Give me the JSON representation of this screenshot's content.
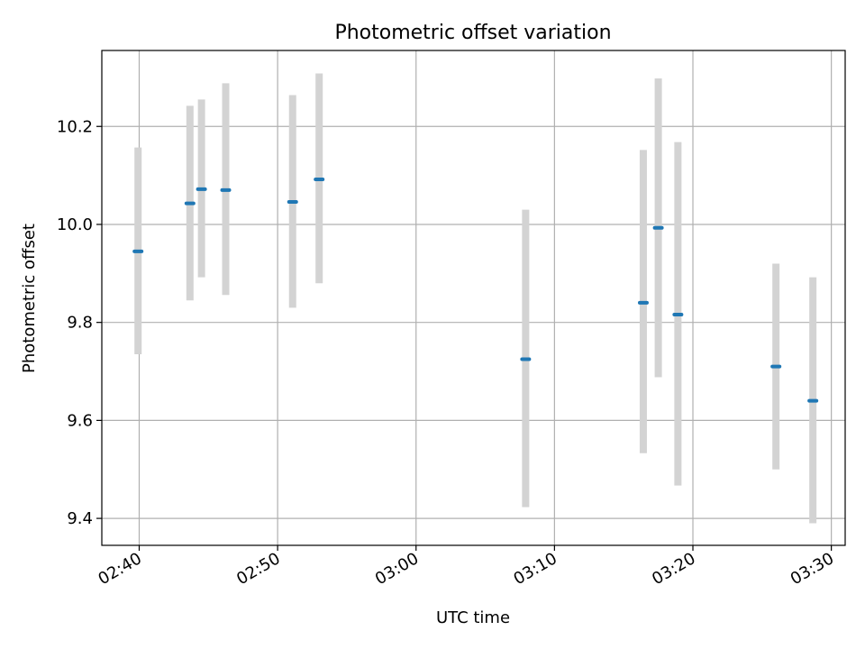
{
  "chart_data": {
    "type": "errorbar",
    "title": "Photometric offset variation",
    "xlabel": "UTC time",
    "ylabel": "Photometric offset",
    "xlim": [
      "02:37:18",
      "03:31:00"
    ],
    "ylim": [
      9.345,
      10.355
    ],
    "grid": true,
    "x_ticks": [
      "02:40",
      "02:50",
      "03:00",
      "03:10",
      "03:20",
      "03:30"
    ],
    "y_ticks": [
      "9.4",
      "9.6",
      "9.8",
      "10.0",
      "10.2"
    ],
    "marker_color": "#1f77b4",
    "errorbar_color": "#d3d3d3",
    "points": [
      {
        "time": "02:39:55",
        "y": 9.945,
        "ylow": 9.735,
        "yhigh": 10.157
      },
      {
        "time": "02:43:40",
        "y": 10.043,
        "ylow": 9.845,
        "yhigh": 10.242
      },
      {
        "time": "02:44:30",
        "y": 10.072,
        "ylow": 9.892,
        "yhigh": 10.255
      },
      {
        "time": "02:46:15",
        "y": 10.07,
        "ylow": 9.856,
        "yhigh": 10.288
      },
      {
        "time": "02:51:05",
        "y": 10.046,
        "ylow": 9.83,
        "yhigh": 10.264
      },
      {
        "time": "02:53:00",
        "y": 10.092,
        "ylow": 9.88,
        "yhigh": 10.308
      },
      {
        "time": "03:07:55",
        "y": 9.725,
        "ylow": 9.423,
        "yhigh": 10.03
      },
      {
        "time": "03:16:25",
        "y": 9.84,
        "ylow": 9.533,
        "yhigh": 10.152
      },
      {
        "time": "03:17:30",
        "y": 9.993,
        "ylow": 9.688,
        "yhigh": 10.298
      },
      {
        "time": "03:18:55",
        "y": 9.816,
        "ylow": 9.467,
        "yhigh": 10.168
      },
      {
        "time": "03:26:00",
        "y": 9.71,
        "ylow": 9.5,
        "yhigh": 9.92
      },
      {
        "time": "03:28:40",
        "y": 9.64,
        "ylow": 9.39,
        "yhigh": 9.892
      }
    ]
  }
}
